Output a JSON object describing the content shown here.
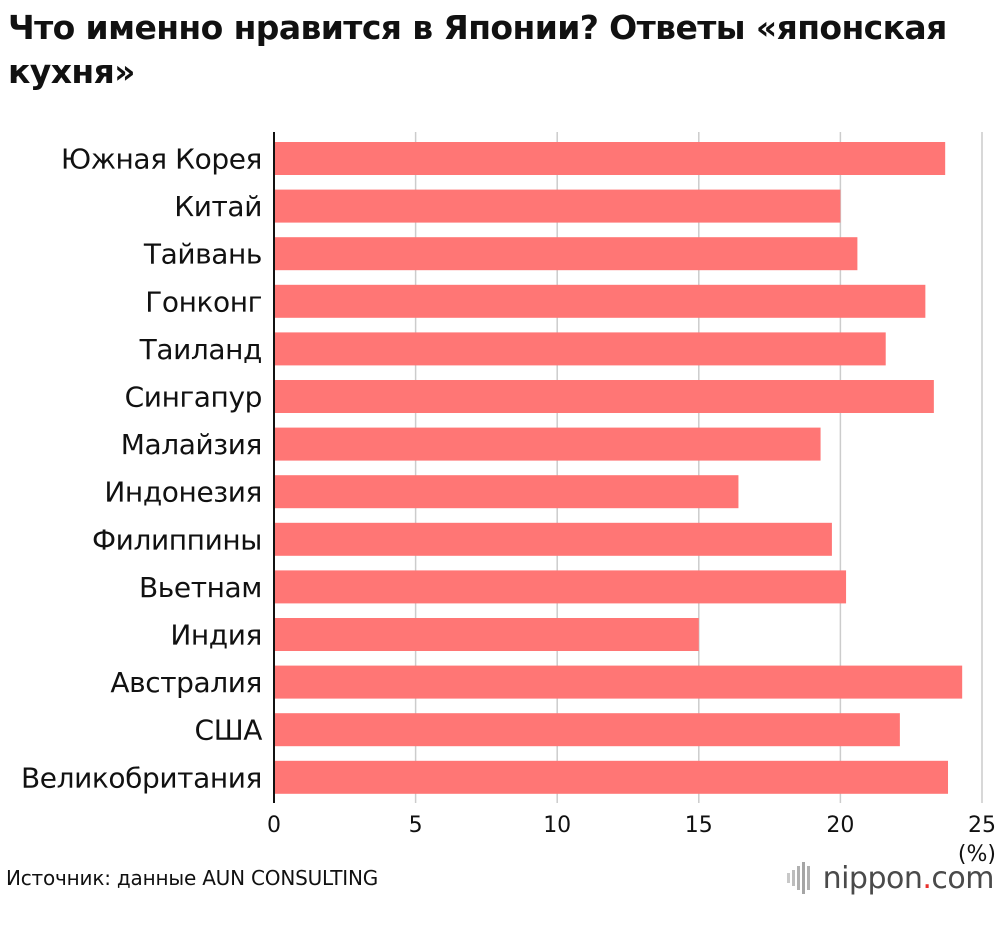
{
  "title": "Что именно нравится в Японии? Ответы «японская кухня»",
  "source": "Источник: данные AUN CONSULTING",
  "logo": {
    "name": "nippon",
    "dot": ".",
    "tld": "com"
  },
  "colors": {
    "bar": "#ff7675",
    "grid": "#cccccc",
    "axis": "#111111"
  },
  "chart_data": {
    "type": "bar",
    "orientation": "horizontal",
    "categories": [
      "Южная Корея",
      "Китай",
      "Тайвань",
      "Гонконг",
      "Таиланд",
      "Сингапур",
      "Малайзия",
      "Индонезия",
      "Филиппины",
      "Вьетнам",
      "Индия",
      "Австралия",
      "США",
      "Великобритания"
    ],
    "values": [
      23.7,
      20.0,
      20.6,
      23.0,
      21.6,
      23.3,
      19.3,
      16.4,
      19.7,
      20.2,
      15.0,
      24.3,
      22.1,
      23.8
    ],
    "xlim": [
      0,
      25
    ],
    "xticks": [
      0,
      5,
      10,
      15,
      20,
      25
    ],
    "x_unit": "(%)",
    "grid": true
  }
}
